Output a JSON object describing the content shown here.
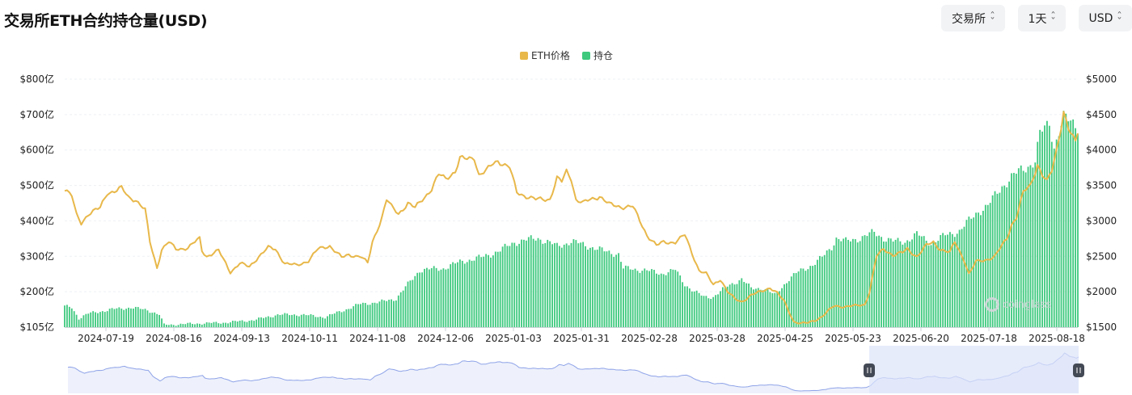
{
  "header": {
    "title": "交易所ETH合约持仓量(USD)",
    "controls": [
      {
        "label": "交易所",
        "name": "exchange-select"
      },
      {
        "label": "1天",
        "name": "interval-select"
      },
      {
        "label": "USD",
        "name": "currency-select"
      }
    ]
  },
  "watermark": "coinglass",
  "colors": {
    "price": "#e8b84a",
    "oi": "#3ec97e",
    "navigator_line": "#8fa3e8",
    "navigator_fill": "#dde4fa"
  },
  "chart_data": {
    "type": "bar+line",
    "legend": [
      "ETH价格",
      "持仓"
    ],
    "legend_position": "top-center",
    "grid": true,
    "x_ticks": [
      "2024-07-19",
      "2024-08-16",
      "2024-09-13",
      "2024-10-11",
      "2024-11-08",
      "2024-12-06",
      "2025-01-03",
      "2025-01-31",
      "2025-02-28",
      "2025-03-28",
      "2025-04-25",
      "2025-05-23",
      "2025-06-20",
      "2025-07-18",
      "2025-08-18"
    ],
    "y_left_ticks": [
      "$800亿",
      "$700亿",
      "$600亿",
      "$500亿",
      "$400亿",
      "$300亿",
      "$200亿",
      "$105亿"
    ],
    "y_left_range": [
      105,
      800
    ],
    "y_left_unit": "亿 USD",
    "y_right_ticks": [
      "$5000",
      "$4500",
      "$4000",
      "$3500",
      "$3000",
      "$2500",
      "$2000",
      "$1500"
    ],
    "y_right_range": [
      1500,
      5000
    ],
    "series": [
      {
        "name": "持仓",
        "axis": "left",
        "kind": "bar",
        "keypoints": [
          [
            0,
            163
          ],
          [
            3,
            160
          ],
          [
            6,
            130
          ],
          [
            10,
            143
          ],
          [
            20,
            155
          ],
          [
            28,
            160
          ],
          [
            35,
            153
          ],
          [
            40,
            140
          ],
          [
            42,
            112
          ],
          [
            45,
            112
          ],
          [
            55,
            115
          ],
          [
            68,
            118
          ],
          [
            80,
            125
          ],
          [
            90,
            140
          ],
          [
            100,
            140
          ],
          [
            110,
            133
          ],
          [
            125,
            170
          ],
          [
            133,
            175
          ],
          [
            140,
            185
          ],
          [
            150,
            265
          ],
          [
            160,
            270
          ],
          [
            168,
            290
          ],
          [
            176,
            300
          ],
          [
            184,
            320
          ],
          [
            190,
            343
          ],
          [
            200,
            355
          ],
          [
            208,
            332
          ],
          [
            214,
            345
          ],
          [
            220,
            335
          ],
          [
            228,
            318
          ],
          [
            234,
            310
          ],
          [
            236,
            270
          ],
          [
            245,
            265
          ],
          [
            252,
            255
          ],
          [
            258,
            265
          ],
          [
            262,
            225
          ],
          [
            266,
            205
          ],
          [
            270,
            190
          ],
          [
            274,
            190
          ],
          [
            280,
            220
          ],
          [
            286,
            240
          ],
          [
            290,
            213
          ],
          [
            295,
            215
          ],
          [
            300,
            195
          ],
          [
            306,
            240
          ],
          [
            310,
            260
          ],
          [
            316,
            280
          ],
          [
            320,
            300
          ],
          [
            324,
            330
          ],
          [
            326,
            355
          ],
          [
            330,
            345
          ],
          [
            336,
            355
          ],
          [
            342,
            370
          ],
          [
            346,
            355
          ],
          [
            350,
            345
          ],
          [
            355,
            345
          ],
          [
            360,
            365
          ],
          [
            366,
            340
          ],
          [
            372,
            362
          ],
          [
            378,
            375
          ],
          [
            386,
            430
          ],
          [
            390,
            445
          ],
          [
            396,
            500
          ],
          [
            400,
            525
          ],
          [
            404,
            545
          ],
          [
            410,
            570
          ],
          [
            412,
            645
          ],
          [
            416,
            680
          ],
          [
            418,
            610
          ],
          [
            422,
            690
          ],
          [
            426,
            680
          ],
          [
            428,
            670
          ]
        ]
      },
      {
        "name": "ETH价格",
        "axis": "right",
        "kind": "line",
        "keypoints": [
          [
            0,
            3450
          ],
          [
            3,
            3350
          ],
          [
            5,
            3080
          ],
          [
            7,
            2970
          ],
          [
            10,
            3100
          ],
          [
            15,
            3180
          ],
          [
            18,
            3400
          ],
          [
            21,
            3420
          ],
          [
            24,
            3460
          ],
          [
            27,
            3330
          ],
          [
            30,
            3300
          ],
          [
            34,
            3150
          ],
          [
            36,
            2700
          ],
          [
            38,
            2460
          ],
          [
            39,
            2340
          ],
          [
            41,
            2600
          ],
          [
            44,
            2700
          ],
          [
            47,
            2600
          ],
          [
            52,
            2620
          ],
          [
            57,
            2750
          ],
          [
            58,
            2580
          ],
          [
            60,
            2500
          ],
          [
            65,
            2580
          ],
          [
            68,
            2400
          ],
          [
            70,
            2280
          ],
          [
            74,
            2400
          ],
          [
            78,
            2350
          ],
          [
            82,
            2500
          ],
          [
            86,
            2620
          ],
          [
            89,
            2600
          ],
          [
            93,
            2400
          ],
          [
            98,
            2370
          ],
          [
            103,
            2440
          ],
          [
            107,
            2600
          ],
          [
            112,
            2650
          ],
          [
            117,
            2480
          ],
          [
            120,
            2520
          ],
          [
            125,
            2500
          ],
          [
            128,
            2400
          ],
          [
            130,
            2700
          ],
          [
            134,
            3050
          ],
          [
            136,
            3300
          ],
          [
            138,
            3200
          ],
          [
            141,
            3100
          ],
          [
            145,
            3250
          ],
          [
            148,
            3180
          ],
          [
            151,
            3300
          ],
          [
            155,
            3450
          ],
          [
            158,
            3650
          ],
          [
            161,
            3600
          ],
          [
            165,
            3700
          ],
          [
            167,
            3880
          ],
          [
            170,
            3870
          ],
          [
            173,
            3900
          ],
          [
            175,
            3650
          ],
          [
            178,
            3700
          ],
          [
            181,
            3810
          ],
          [
            183,
            3850
          ],
          [
            188,
            3750
          ],
          [
            191,
            3400
          ],
          [
            195,
            3350
          ],
          [
            199,
            3300
          ],
          [
            205,
            3310
          ],
          [
            208,
            3600
          ],
          [
            210,
            3550
          ],
          [
            212,
            3700
          ],
          [
            214,
            3600
          ],
          [
            216,
            3300
          ],
          [
            219,
            3250
          ],
          [
            222,
            3300
          ],
          [
            226,
            3350
          ],
          [
            230,
            3230
          ],
          [
            235,
            3200
          ],
          [
            240,
            3200
          ],
          [
            243,
            3000
          ],
          [
            246,
            2800
          ],
          [
            250,
            2650
          ],
          [
            253,
            2700
          ],
          [
            258,
            2700
          ],
          [
            262,
            2800
          ],
          [
            265,
            2550
          ],
          [
            268,
            2300
          ],
          [
            271,
            2250
          ],
          [
            274,
            2100
          ],
          [
            277,
            2180
          ],
          [
            280,
            2000
          ],
          [
            283,
            1900
          ],
          [
            286,
            1860
          ],
          [
            290,
            1950
          ],
          [
            294,
            2000
          ],
          [
            298,
            2060
          ],
          [
            301,
            1980
          ],
          [
            304,
            1860
          ],
          [
            308,
            1580
          ],
          [
            311,
            1550
          ],
          [
            314,
            1560
          ],
          [
            317,
            1600
          ],
          [
            320,
            1650
          ],
          [
            325,
            1800
          ],
          [
            330,
            1790
          ],
          [
            334,
            1800
          ],
          [
            338,
            1820
          ],
          [
            340,
            2000
          ],
          [
            343,
            2500
          ],
          [
            346,
            2600
          ],
          [
            350,
            2520
          ],
          [
            354,
            2550
          ],
          [
            356,
            2600
          ],
          [
            360,
            2500
          ],
          [
            364,
            2650
          ],
          [
            367,
            2700
          ],
          [
            370,
            2600
          ],
          [
            374,
            2550
          ],
          [
            376,
            2700
          ],
          [
            380,
            2450
          ],
          [
            382,
            2250
          ],
          [
            385,
            2420
          ],
          [
            389,
            2450
          ],
          [
            393,
            2500
          ],
          [
            396,
            2650
          ],
          [
            398,
            2750
          ],
          [
            400,
            2950
          ],
          [
            402,
            3050
          ],
          [
            405,
            3400
          ],
          [
            408,
            3500
          ],
          [
            411,
            3800
          ],
          [
            413,
            3650
          ],
          [
            415,
            3550
          ],
          [
            417,
            3700
          ],
          [
            419,
            4000
          ],
          [
            421,
            4350
          ],
          [
            422,
            4550
          ],
          [
            424,
            4300
          ],
          [
            427,
            4100
          ],
          [
            429,
            4400
          ],
          [
            431,
            4280
          ],
          [
            433,
            4450
          ],
          [
            435,
            4500
          ],
          [
            437,
            4700
          ],
          [
            439,
            4750
          ],
          [
            441,
            4600
          ]
        ]
      }
    ]
  }
}
